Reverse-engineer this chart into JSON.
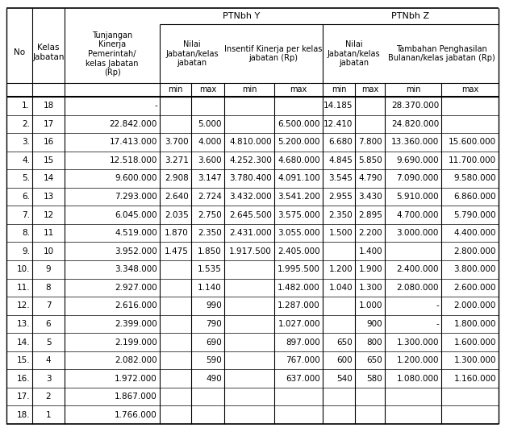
{
  "rows": [
    [
      "1.",
      "18",
      "-",
      "",
      "",
      "",
      "",
      "14.185",
      "",
      "28.370.000"
    ],
    [
      "2.",
      "17",
      "22.842.000",
      "",
      "5.000",
      "",
      "6.500.000",
      "12.410",
      "",
      "24.820.000"
    ],
    [
      "3.",
      "16",
      "17.413.000",
      "3.700",
      "4.000",
      "4.810.000",
      "5.200.000",
      "6.680",
      "7.800",
      "13.360.000",
      "15.600.000"
    ],
    [
      "4.",
      "15",
      "12.518.000",
      "3.271",
      "3.600",
      "4.252.300",
      "4.680.000",
      "4.845",
      "5.850",
      "9.690.000",
      "11.700.000"
    ],
    [
      "5.",
      "14",
      "9.600.000",
      "2.908",
      "3.147",
      "3.780.400",
      "4.091.100",
      "3.545",
      "4.790",
      "7.090.000",
      "9.580.000"
    ],
    [
      "6.",
      "13",
      "7.293.000",
      "2.640",
      "2.724",
      "3.432.000",
      "3.541.200",
      "2.955",
      "3.430",
      "5.910.000",
      "6.860.000"
    ],
    [
      "7.",
      "12",
      "6.045.000",
      "2.035",
      "2.750",
      "2.645.500",
      "3.575.000",
      "2.350",
      "2.895",
      "4.700.000",
      "5.790.000"
    ],
    [
      "8.",
      "11",
      "4.519.000",
      "1.870",
      "2.350",
      "2.431.000",
      "3.055.000",
      "1.500",
      "2.200",
      "3.000.000",
      "4.400.000"
    ],
    [
      "9.",
      "10",
      "3.952.000",
      "1.475",
      "1.850",
      "1.917.500",
      "2.405.000",
      "",
      "1.400",
      "",
      "2.800.000"
    ],
    [
      "10.",
      "9",
      "3.348.000",
      "",
      "1.535",
      "",
      "1.995.500",
      "1.200",
      "1.900",
      "2.400.000",
      "3.800.000"
    ],
    [
      "11.",
      "8",
      "2.927.000",
      "",
      "1.140",
      "",
      "1.482.000",
      "1.040",
      "1.300",
      "2.080.000",
      "2.600.000"
    ],
    [
      "12.",
      "7",
      "2.616.000",
      "",
      "990",
      "",
      "1.287.000",
      "",
      "1.000",
      "-",
      "2.000.000"
    ],
    [
      "13.",
      "6",
      "2.399.000",
      "",
      "790",
      "",
      "1.027.000",
      "",
      "900",
      "-",
      "1.800.000"
    ],
    [
      "14.",
      "5",
      "2.199.000",
      "",
      "690",
      "",
      "897.000",
      "650",
      "800",
      "1.300.000",
      "1.600.000"
    ],
    [
      "15.",
      "4",
      "2.082.000",
      "",
      "590",
      "",
      "767.000",
      "600",
      "650",
      "1.200.000",
      "1.300.000"
    ],
    [
      "16.",
      "3",
      "1.972.000",
      "",
      "490",
      "",
      "637.000",
      "540",
      "580",
      "1.080.000",
      "1.160.000"
    ],
    [
      "17.",
      "2",
      "1.867.000",
      "",
      "",
      "",
      "",
      "",
      "",
      "",
      ""
    ],
    [
      "18.",
      "1",
      "1.766.000",
      "",
      "",
      "",
      "",
      "",
      "",
      "",
      ""
    ]
  ],
  "font_size": 7.5,
  "bg_color": "#ffffff",
  "text_color": "#000000",
  "line_color": "#000000"
}
